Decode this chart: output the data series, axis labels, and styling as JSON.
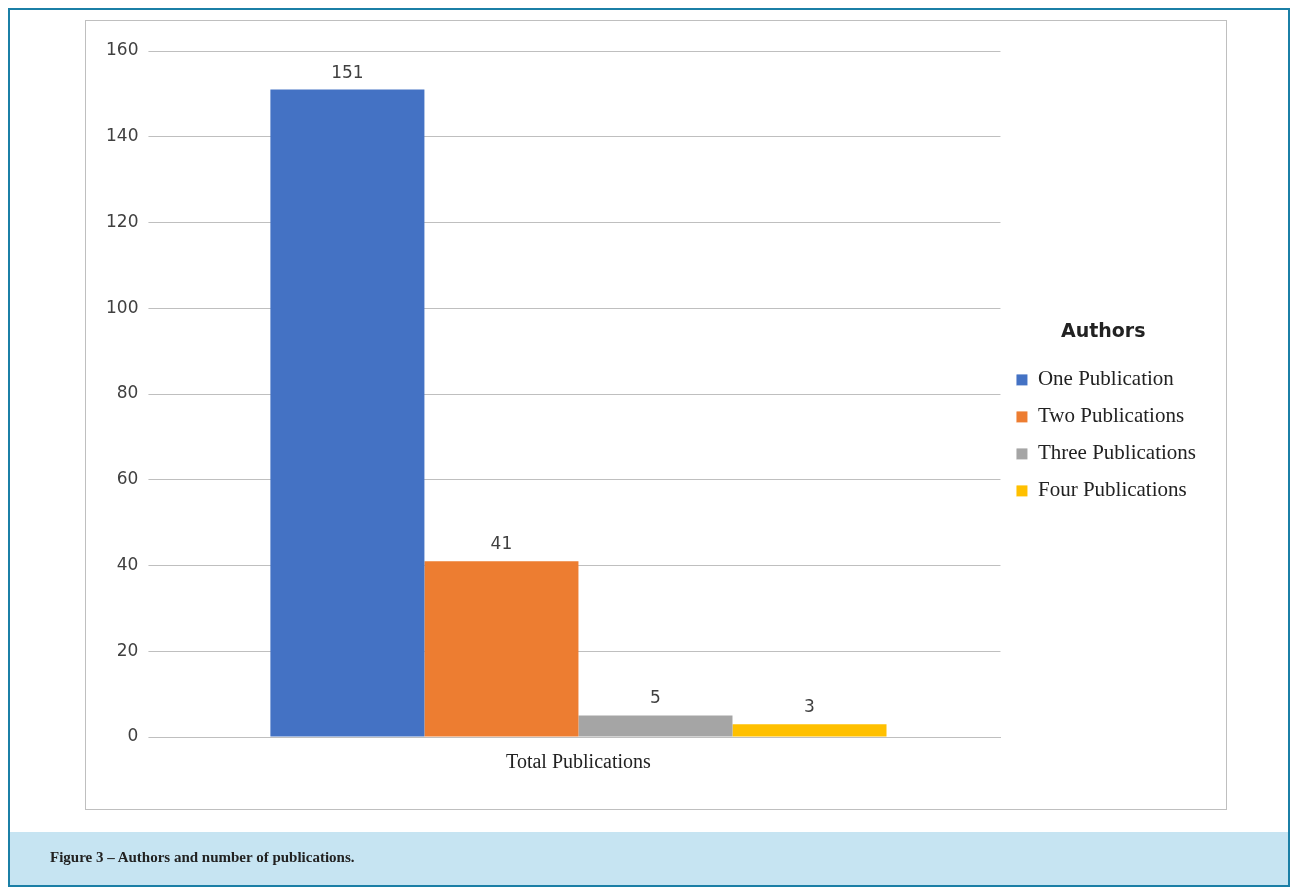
{
  "chart_data": {
    "type": "bar",
    "categories": [
      "Total Publications"
    ],
    "legend_title": "Authors",
    "legend": "right",
    "grid": "y",
    "data_labels": true,
    "ylim": [
      0,
      160
    ],
    "yticks": [
      0,
      20,
      40,
      60,
      80,
      100,
      120,
      140,
      160
    ],
    "series": [
      {
        "name": "One Publication",
        "color": "#4472c4",
        "values": [
          151
        ]
      },
      {
        "name": "Two Publications",
        "color": "#ed7d31",
        "values": [
          41
        ]
      },
      {
        "name": "Three Publications",
        "color": "#a5a5a5",
        "values": [
          5
        ]
      },
      {
        "name": "Four Publications",
        "color": "#ffc000",
        "values": [
          3
        ]
      }
    ],
    "annotations": [
      "Figure 3 – Authors and number of publications."
    ]
  }
}
